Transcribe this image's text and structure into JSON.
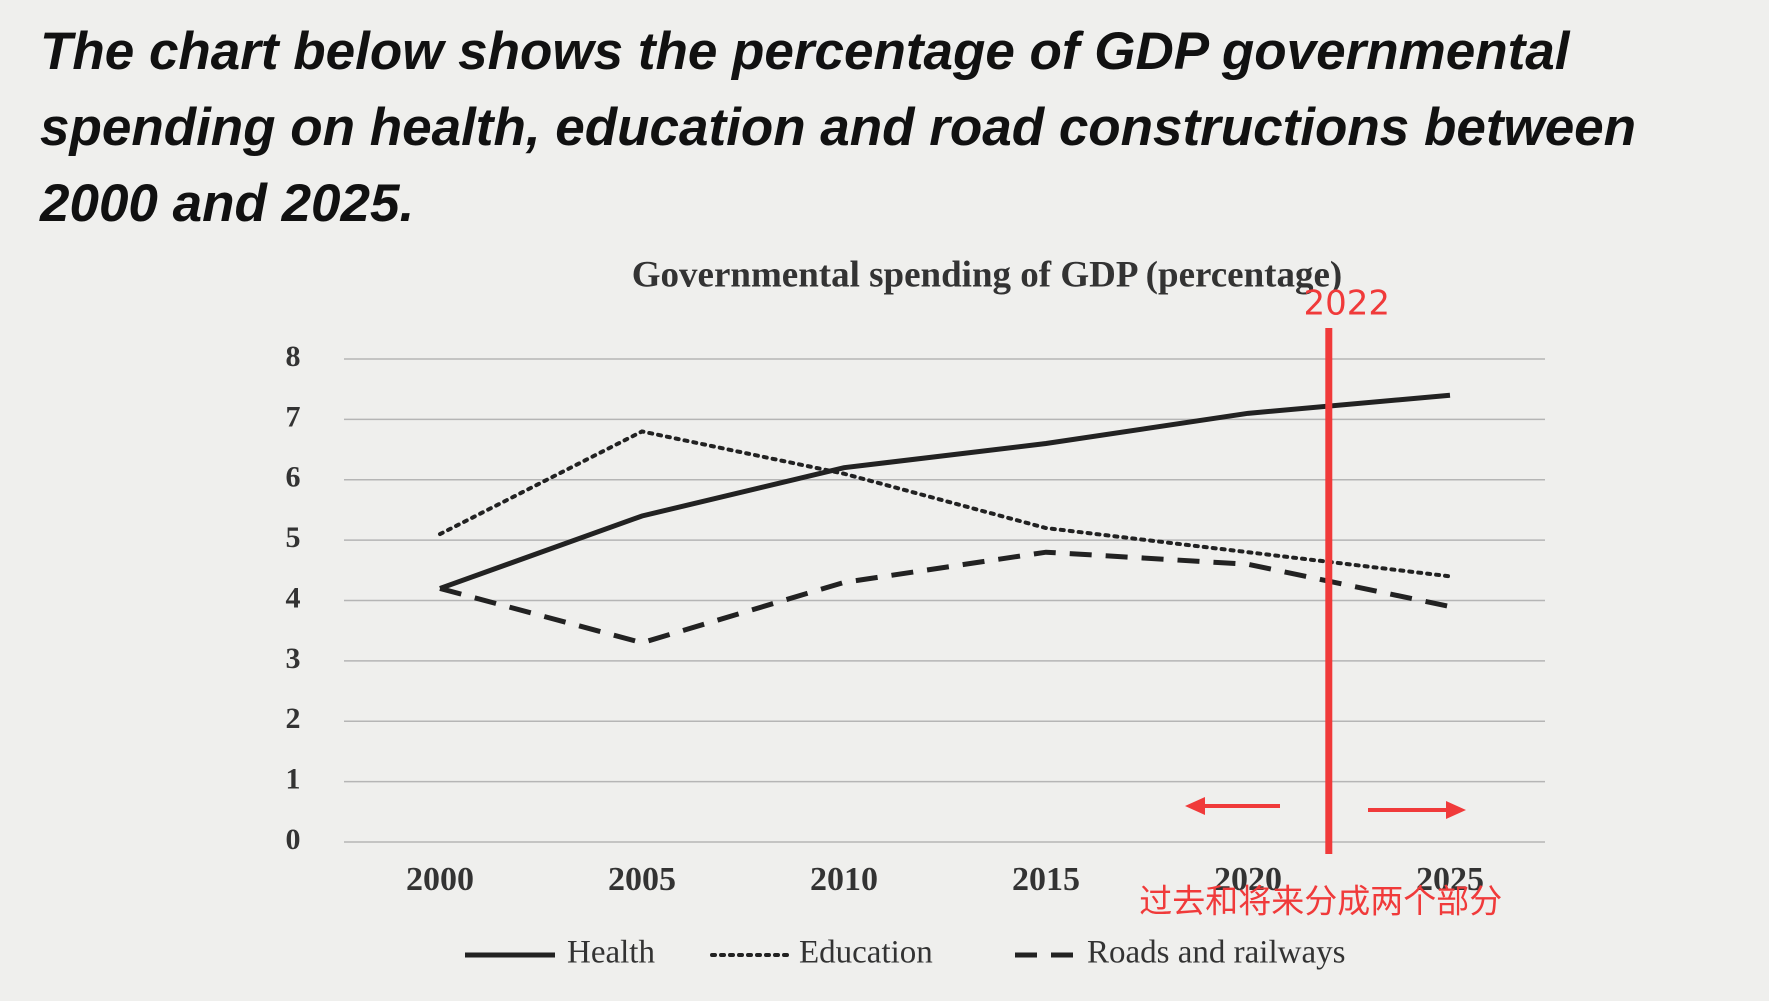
{
  "heading": "The chart below shows the percentage of GDP governmental spending on health, education and road constructions between 2000 and 2025.",
  "chart_data": {
    "type": "line",
    "title": "Governmental spending of GDP (percentage)",
    "x": [
      2000,
      2005,
      2010,
      2015,
      2020,
      2025
    ],
    "xlim": [
      2000,
      2025
    ],
    "xticks": [
      2000,
      2005,
      2010,
      2015,
      2020,
      2025
    ],
    "ylim": [
      0,
      8
    ],
    "yticks": [
      0,
      1,
      2,
      3,
      4,
      5,
      6,
      7,
      8
    ],
    "grid": true,
    "series": [
      {
        "name": "Health",
        "color": "#222222",
        "dash": "solid",
        "values": [
          4.2,
          5.4,
          6.2,
          6.6,
          7.1,
          7.4
        ]
      },
      {
        "name": "Education",
        "color": "#222222",
        "dash": "dotted",
        "values": [
          5.1,
          6.8,
          6.1,
          5.2,
          4.8,
          4.4
        ]
      },
      {
        "name": "Roads and railways",
        "color": "#222222",
        "dash": "dashed",
        "values": [
          4.2,
          3.3,
          4.3,
          4.8,
          4.6,
          3.9
        ]
      }
    ],
    "legend": "bottom",
    "marker": {
      "x": 2022,
      "note": "过去和将来分成两个部分",
      "color": "#f03a3a"
    }
  }
}
